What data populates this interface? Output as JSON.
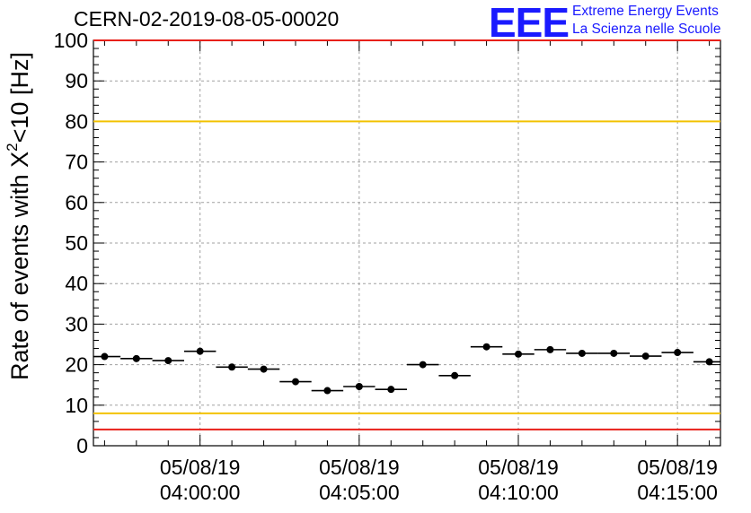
{
  "header": {
    "run_title": "CERN-02-2019-08-05-00020",
    "logo_text": "EEE",
    "logo_line1": "Extreme Energy Events",
    "logo_line2": "La Scienza nelle Scuole"
  },
  "colors": {
    "points": "#000000",
    "red_limit": "#e8201a",
    "yellow_limit": "#f2c200",
    "grid": "#a0a0a0",
    "logo": "#1a1aff"
  },
  "chart_data": {
    "type": "scatter",
    "title": "CERN-02-2019-08-05-00020",
    "ylabel_prefix": "Rate of events with X",
    "ylabel_sup": "2",
    "ylabel_suffix": "<10 [Hz]",
    "ylim": [
      0,
      100
    ],
    "y_ticks": [
      0,
      10,
      20,
      30,
      40,
      50,
      60,
      70,
      80,
      90,
      100
    ],
    "x_ticks": [
      {
        "minute": 0,
        "date": "05/08/19",
        "time": "04:00:00"
      },
      {
        "minute": 5,
        "date": "05/08/19",
        "time": "04:05:00"
      },
      {
        "minute": 10,
        "date": "05/08/19",
        "time": "04:10:00"
      },
      {
        "minute": 15,
        "date": "05/08/19",
        "time": "04:15:00"
      }
    ],
    "xlim_minutes": [
      -3.35,
      16.35
    ],
    "bin_width_minutes": 1,
    "x_minutes": [
      -3,
      -2,
      -1,
      0,
      1,
      2,
      3,
      4,
      5,
      6,
      7,
      8,
      9,
      10,
      11,
      12,
      13,
      14,
      15,
      16
    ],
    "values": [
      22.0,
      21.5,
      21.0,
      23.3,
      19.4,
      18.9,
      15.8,
      13.6,
      14.6,
      13.9,
      20.0,
      17.3,
      24.4,
      22.6,
      23.7,
      22.8,
      22.8,
      22.1,
      23.0,
      20.7
    ],
    "reference_lines": [
      {
        "value": 100,
        "color": "red"
      },
      {
        "value": 80,
        "color": "yellow"
      },
      {
        "value": 8,
        "color": "yellow"
      },
      {
        "value": 4,
        "color": "red"
      }
    ],
    "grid": true
  }
}
